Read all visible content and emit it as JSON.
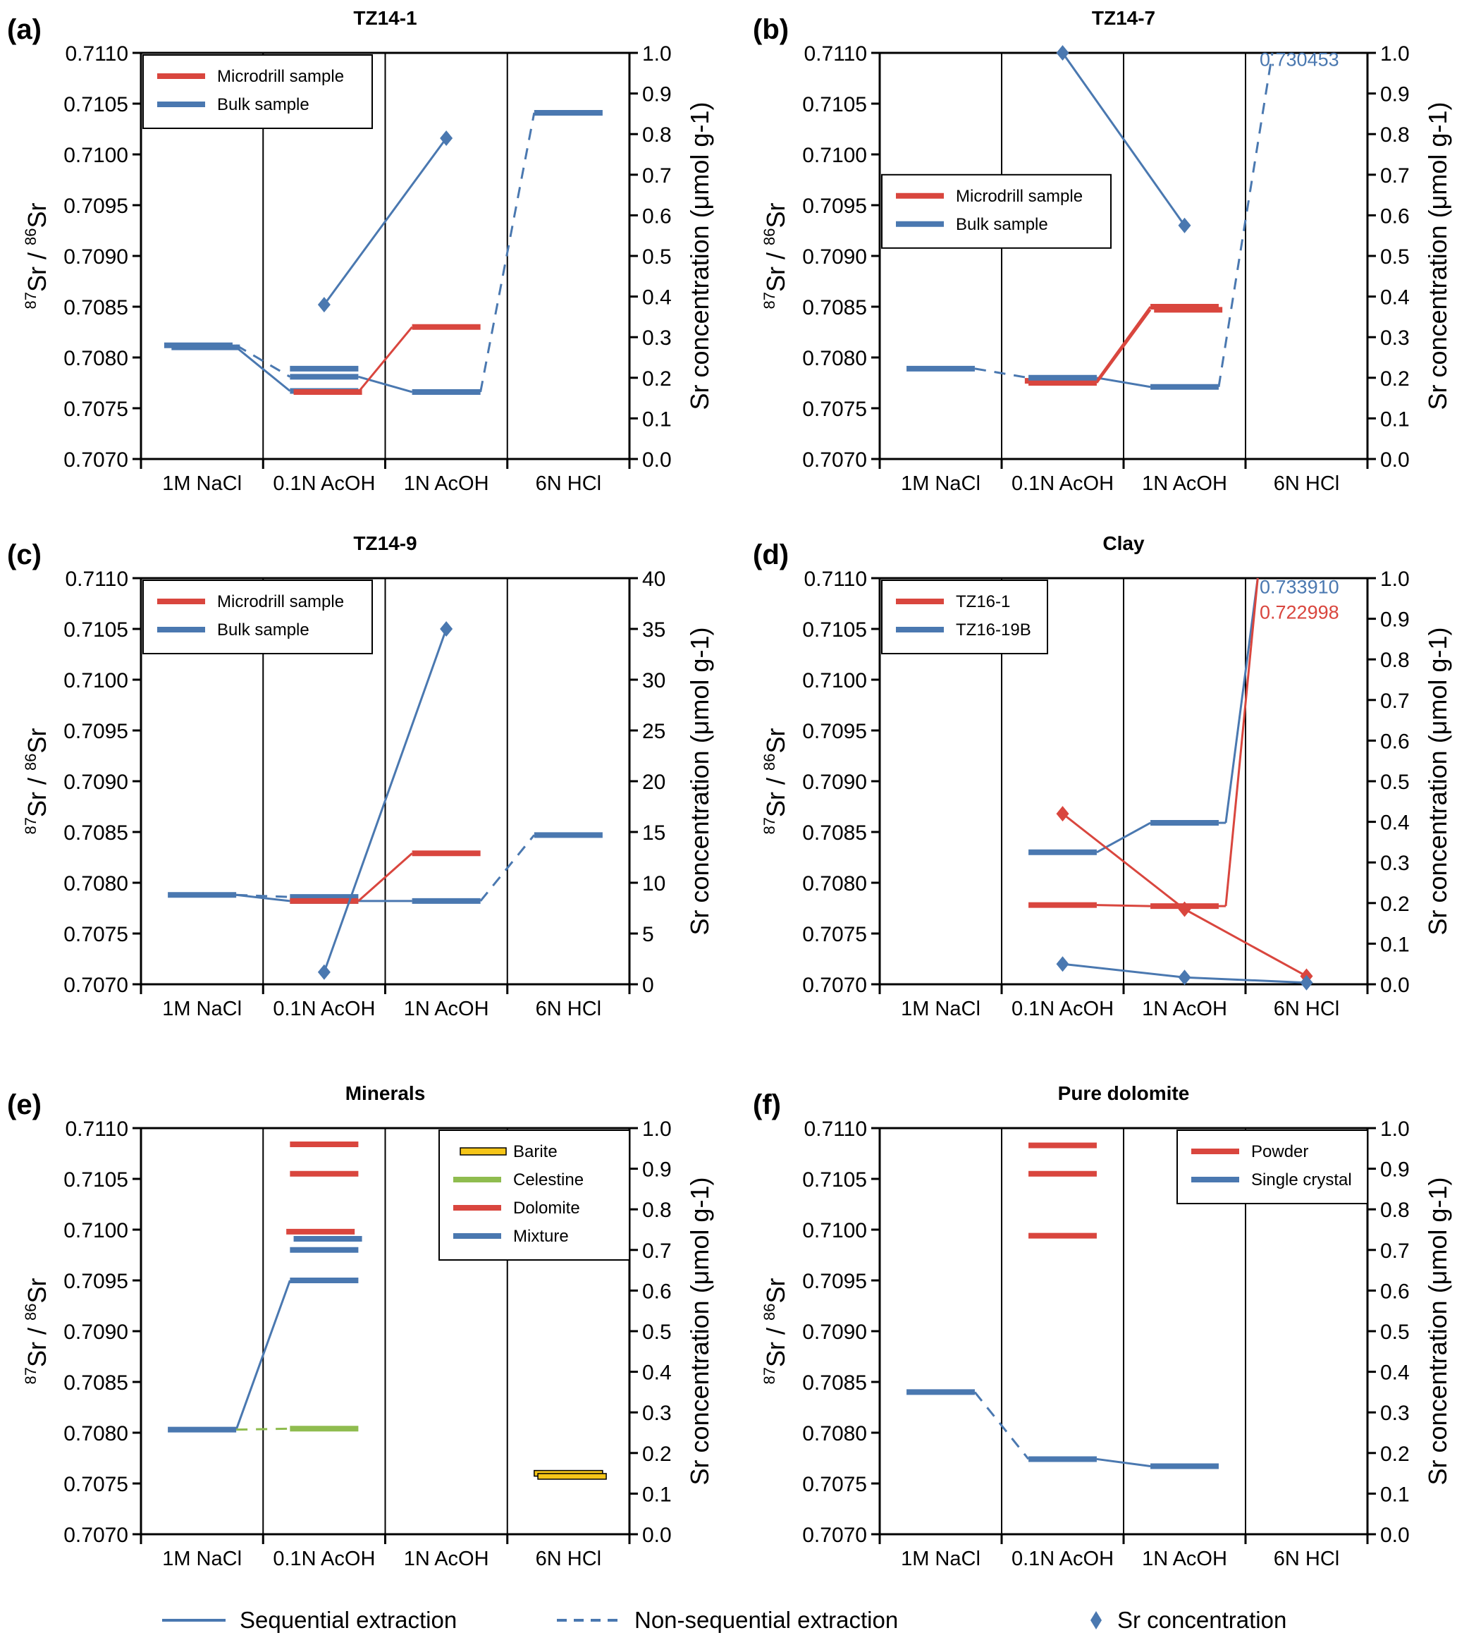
{
  "figure": {
    "bottom_legend": [
      {
        "label": "Sequential extraction",
        "style": "solid",
        "color": "#4a78b0"
      },
      {
        "label": "Non-sequential extraction",
        "style": "dashed",
        "color": "#4a78b0"
      },
      {
        "label": "Sr concentration",
        "style": "diamond",
        "color": "#4a78b0"
      }
    ],
    "colors": {
      "red": "#d9463e",
      "blue": "#4a78b0",
      "green": "#8fbc4f",
      "yellow": "#f5c518"
    }
  },
  "chart_data": [
    {
      "id": "a",
      "letter": "(a)",
      "title": "TZ14-1",
      "type": "line",
      "categories": [
        "1M NaCl",
        "0.1N AcOH",
        "1N AcOH",
        "6N HCl"
      ],
      "ylabel": "87Sr/86Sr",
      "ylabel_sup1": "87",
      "ylabel_sup2": "86",
      "y2label": "Sr concentration (μmol g-1)",
      "ylim": [
        0.707,
        0.711
      ],
      "yticks": [
        "0.7070",
        "0.7075",
        "0.7080",
        "0.7085",
        "0.7090",
        "0.7095",
        "0.7100",
        "0.7105",
        "0.7110"
      ],
      "y2lim": [
        0,
        1.0
      ],
      "y2ticks": [
        "0.0",
        "0.1",
        "0.2",
        "0.3",
        "0.4",
        "0.5",
        "0.6",
        "0.7",
        "0.8",
        "0.9",
        "1.0"
      ],
      "legend": {
        "position": "top-left",
        "entries": [
          {
            "label": "Microdrill sample",
            "color": "red"
          },
          {
            "label": "Bulk sample",
            "color": "blue"
          }
        ]
      },
      "ratio_segments": [
        {
          "color": "blue",
          "cat": 0,
          "value": 0.70812,
          "offset": -0.03
        },
        {
          "color": "blue",
          "cat": 0,
          "value": 0.7081,
          "offset": 0.03
        },
        {
          "color": "blue",
          "cat": 1,
          "value": 0.70789
        },
        {
          "color": "blue",
          "cat": 1,
          "value": 0.70781
        },
        {
          "color": "blue",
          "cat": 1,
          "value": 0.70767
        },
        {
          "color": "red",
          "cat": 1,
          "value": 0.70766,
          "offset": 0.03
        },
        {
          "color": "blue",
          "cat": 2,
          "value": 0.70766
        },
        {
          "color": "red",
          "cat": 2,
          "value": 0.7083
        },
        {
          "color": "blue",
          "cat": 3,
          "value": 0.71041
        }
      ],
      "connectors": [
        {
          "color": "blue",
          "style": "solid",
          "from": [
            0,
            0.7081
          ],
          "to": [
            1,
            0.70767
          ]
        },
        {
          "color": "blue",
          "style": "solid",
          "from": [
            1,
            0.70781
          ],
          "to": [
            2,
            0.70766
          ]
        },
        {
          "color": "blue",
          "style": "dashed",
          "from": [
            0,
            0.70812
          ],
          "to": [
            1,
            0.70781
          ]
        },
        {
          "color": "blue",
          "style": "dashed",
          "from": [
            2,
            0.70766
          ],
          "to": [
            3,
            0.71041
          ]
        },
        {
          "color": "red",
          "style": "solid",
          "from": [
            1,
            0.70766
          ],
          "to": [
            2,
            0.7083
          ]
        }
      ],
      "concentration": [
        {
          "color": "blue",
          "points": [
            [
              1,
              0.38
            ],
            [
              2,
              0.79
            ]
          ]
        }
      ],
      "annotations": []
    },
    {
      "id": "b",
      "letter": "(b)",
      "title": "TZ14-7",
      "type": "line",
      "categories": [
        "1M NaCl",
        "0.1N AcOH",
        "1N AcOH",
        "6N HCl"
      ],
      "ylabel": "87Sr/86Sr",
      "ylabel_sup1": "87",
      "ylabel_sup2": "86",
      "y2label": "Sr concentration (μmol g-1)",
      "ylim": [
        0.707,
        0.711
      ],
      "yticks": [
        "0.7070",
        "0.7075",
        "0.7080",
        "0.7085",
        "0.7090",
        "0.7095",
        "0.7100",
        "0.7105",
        "0.7110"
      ],
      "y2lim": [
        0,
        1.0
      ],
      "y2ticks": [
        "0.0",
        "0.1",
        "0.2",
        "0.3",
        "0.4",
        "0.5",
        "0.6",
        "0.7",
        "0.8",
        "0.9",
        "1.0"
      ],
      "legend": {
        "position": "center-left",
        "entries": [
          {
            "label": "Microdrill sample",
            "color": "red"
          },
          {
            "label": "Bulk sample",
            "color": "blue"
          }
        ]
      },
      "ratio_segments": [
        {
          "color": "blue",
          "cat": 0,
          "value": 0.70789
        },
        {
          "color": "red",
          "cat": 1,
          "value": 0.70777,
          "offset": -0.03
        },
        {
          "color": "red",
          "cat": 1,
          "value": 0.70775
        },
        {
          "color": "blue",
          "cat": 1,
          "value": 0.7078
        },
        {
          "color": "red",
          "cat": 2,
          "value": 0.7085
        },
        {
          "color": "red",
          "cat": 2,
          "value": 0.70847,
          "offset": 0.03
        },
        {
          "color": "blue",
          "cat": 2,
          "value": 0.70771
        }
      ],
      "connectors": [
        {
          "color": "blue",
          "style": "dashed",
          "from": [
            0,
            0.70789
          ],
          "to": [
            1,
            0.7078
          ]
        },
        {
          "color": "blue",
          "style": "solid",
          "from": [
            1,
            0.7078
          ],
          "to": [
            2,
            0.70771
          ]
        },
        {
          "color": "blue",
          "style": "dashed",
          "from": [
            2,
            0.70771
          ],
          "to": [
            3,
            0.711
          ]
        },
        {
          "color": "red",
          "style": "solid",
          "from": [
            1,
            0.70777
          ],
          "to": [
            2,
            0.7085
          ]
        },
        {
          "color": "red",
          "style": "solid",
          "from": [
            1,
            0.70775
          ],
          "to": [
            2,
            0.70847
          ]
        }
      ],
      "concentration": [
        {
          "color": "blue",
          "points": [
            [
              1,
              1.0
            ],
            [
              2,
              0.575
            ]
          ]
        }
      ],
      "annotations": [
        {
          "text": "0.730453",
          "color": "blue",
          "cat": 3,
          "value": 0.71087
        }
      ]
    },
    {
      "id": "c",
      "letter": "(c)",
      "title": "TZ14-9",
      "type": "line",
      "categories": [
        "1M NaCl",
        "0.1N AcOH",
        "1N AcOH",
        "6N HCl"
      ],
      "ylabel": "87Sr/86Sr",
      "ylabel_sup1": "87",
      "ylabel_sup2": "86",
      "y2label": "Sr concentration (μmol g-1)",
      "ylim": [
        0.707,
        0.711
      ],
      "yticks": [
        "0.7070",
        "0.7075",
        "0.7080",
        "0.7085",
        "0.7090",
        "0.7095",
        "0.7100",
        "0.7105",
        "0.7110"
      ],
      "y2lim": [
        0,
        40
      ],
      "y2ticks": [
        "0",
        "5",
        "10",
        "15",
        "20",
        "25",
        "30",
        "35",
        "40"
      ],
      "legend": {
        "position": "top-left",
        "entries": [
          {
            "label": "Microdrill sample",
            "color": "red"
          },
          {
            "label": "Bulk sample",
            "color": "blue"
          }
        ]
      },
      "ratio_segments": [
        {
          "color": "blue",
          "cat": 0,
          "value": 0.70788
        },
        {
          "color": "blue",
          "cat": 1,
          "value": 0.70786
        },
        {
          "color": "blue",
          "cat": 1,
          "value": 0.70782
        },
        {
          "color": "red",
          "cat": 1,
          "value": 0.70782
        },
        {
          "color": "red",
          "cat": 2,
          "value": 0.70829
        },
        {
          "color": "blue",
          "cat": 2,
          "value": 0.70782
        },
        {
          "color": "blue",
          "cat": 3,
          "value": 0.70847
        }
      ],
      "connectors": [
        {
          "color": "blue",
          "style": "solid",
          "from": [
            0,
            0.70788
          ],
          "to": [
            1,
            0.70782
          ]
        },
        {
          "color": "blue",
          "style": "dashed",
          "from": [
            0,
            0.70788
          ],
          "to": [
            1,
            0.70786
          ]
        },
        {
          "color": "blue",
          "style": "solid",
          "from": [
            1,
            0.70782
          ],
          "to": [
            2,
            0.70782
          ]
        },
        {
          "color": "blue",
          "style": "dashed",
          "from": [
            2,
            0.70782
          ],
          "to": [
            3,
            0.70847
          ]
        },
        {
          "color": "red",
          "style": "solid",
          "from": [
            1,
            0.70782
          ],
          "to": [
            2,
            0.70829
          ]
        }
      ],
      "concentration": [
        {
          "color": "blue",
          "points": [
            [
              1,
              1.2
            ],
            [
              2,
              35.0
            ]
          ]
        }
      ],
      "annotations": []
    },
    {
      "id": "d",
      "letter": "(d)",
      "title": "Clay",
      "type": "line",
      "categories": [
        "1M NaCl",
        "0.1N AcOH",
        "1N AcOH",
        "6N HCl"
      ],
      "ylabel": "87Sr/86Sr",
      "ylabel_sup1": "87",
      "ylabel_sup2": "86",
      "y2label": "Sr concentration (μmol g-1)",
      "ylim": [
        0.707,
        0.711
      ],
      "yticks": [
        "0.7070",
        "0.7075",
        "0.7080",
        "0.7085",
        "0.7090",
        "0.7095",
        "0.7100",
        "0.7105",
        "0.7110"
      ],
      "y2lim": [
        0,
        1.0
      ],
      "y2ticks": [
        "0.0",
        "0.1",
        "0.2",
        "0.3",
        "0.4",
        "0.5",
        "0.6",
        "0.7",
        "0.8",
        "0.9",
        "1.0"
      ],
      "legend": {
        "position": "top-left",
        "entries": [
          {
            "label": "TZ16-1",
            "color": "red"
          },
          {
            "label": "TZ16-19B",
            "color": "blue"
          }
        ]
      },
      "ratio_segments": [
        {
          "color": "blue",
          "cat": 1,
          "value": 0.7083
        },
        {
          "color": "red",
          "cat": 1,
          "value": 0.70778
        },
        {
          "color": "blue",
          "cat": 2,
          "value": 0.70859
        },
        {
          "color": "red",
          "cat": 2,
          "value": 0.70777
        }
      ],
      "connectors": [
        {
          "color": "blue",
          "style": "solid",
          "from": [
            1,
            0.7083
          ],
          "to": [
            2,
            0.70859
          ]
        },
        {
          "color": "blue",
          "style": "solid",
          "from": [
            2,
            0.70859
          ],
          "to": [
            3,
            0.711
          ],
          "steep": true
        },
        {
          "color": "red",
          "style": "solid",
          "from": [
            1,
            0.70778
          ],
          "to": [
            2,
            0.70777
          ]
        },
        {
          "color": "red",
          "style": "solid",
          "from": [
            2,
            0.70777
          ],
          "to": [
            3,
            0.711
          ],
          "steep": true,
          "shift": 0.1
        }
      ],
      "concentration": [
        {
          "color": "red",
          "points": [
            [
              1,
              0.42
            ],
            [
              2,
              0.185
            ],
            [
              3,
              0.02
            ]
          ]
        },
        {
          "color": "blue",
          "points": [
            [
              1,
              0.05
            ],
            [
              2,
              0.017
            ],
            [
              3,
              0.004
            ]
          ]
        }
      ],
      "annotations": [
        {
          "text": "0.733910",
          "color": "blue",
          "cat": 3,
          "value": 0.71085
        },
        {
          "text": "0.722998",
          "color": "red",
          "cat": 3,
          "value": 0.7106
        }
      ]
    },
    {
      "id": "e",
      "letter": "(e)",
      "title": "Minerals",
      "type": "line",
      "categories": [
        "1M NaCl",
        "0.1N AcOH",
        "1N AcOH",
        "6N HCl"
      ],
      "ylabel": "87Sr/86Sr",
      "ylabel_sup1": "87",
      "ylabel_sup2": "86",
      "y2label": "Sr concentration (μmol g-1)",
      "ylim": [
        0.707,
        0.711
      ],
      "yticks": [
        "0.7070",
        "0.7075",
        "0.7080",
        "0.7085",
        "0.7090",
        "0.7095",
        "0.7100",
        "0.7105",
        "0.7110"
      ],
      "y2lim": [
        0,
        1.0
      ],
      "y2ticks": [
        "0.0",
        "0.1",
        "0.2",
        "0.3",
        "0.4",
        "0.5",
        "0.6",
        "0.7",
        "0.8",
        "0.9",
        "1.0"
      ],
      "legend": {
        "position": "top-right",
        "entries": [
          {
            "label": "Barite",
            "color": "yellow",
            "outlined": true
          },
          {
            "label": "Celestine",
            "color": "green"
          },
          {
            "label": "Dolomite",
            "color": "red"
          },
          {
            "label": "Mixture",
            "color": "blue"
          }
        ]
      },
      "ratio_segments": [
        {
          "color": "blue",
          "cat": 0,
          "value": 0.70803
        },
        {
          "color": "green",
          "cat": 1,
          "value": 0.70804
        },
        {
          "color": "red",
          "cat": 1,
          "value": 0.71084
        },
        {
          "color": "red",
          "cat": 1,
          "value": 0.71055
        },
        {
          "color": "red",
          "cat": 1,
          "value": 0.70998,
          "offset": -0.03
        },
        {
          "color": "blue",
          "cat": 1,
          "value": 0.70991,
          "offset": 0.03
        },
        {
          "color": "blue",
          "cat": 1,
          "value": 0.7098
        },
        {
          "color": "blue",
          "cat": 1,
          "value": 0.7095
        },
        {
          "color": "yellow",
          "cat": 3,
          "value": 0.7076,
          "outlined": true
        },
        {
          "color": "yellow",
          "cat": 3,
          "value": 0.70757,
          "outlined": true,
          "offset": 0.03
        }
      ],
      "connectors": [
        {
          "color": "blue",
          "style": "solid",
          "from": [
            0,
            0.70803
          ],
          "to": [
            1,
            0.7095
          ]
        },
        {
          "color": "green",
          "style": "dashed",
          "from": [
            0,
            0.70803
          ],
          "to": [
            1,
            0.70804
          ]
        }
      ],
      "concentration": [],
      "annotations": []
    },
    {
      "id": "f",
      "letter": "(f)",
      "title": "Pure dolomite",
      "type": "line",
      "categories": [
        "1M NaCl",
        "0.1N AcOH",
        "1N AcOH",
        "6N HCl"
      ],
      "ylabel": "87Sr/86Sr",
      "ylabel_sup1": "87",
      "ylabel_sup2": "86",
      "y2label": "Sr concentration (μmol g-1)",
      "ylim": [
        0.707,
        0.711
      ],
      "yticks": [
        "0.7070",
        "0.7075",
        "0.7080",
        "0.7085",
        "0.7090",
        "0.7095",
        "0.7100",
        "0.7105",
        "0.7110"
      ],
      "y2lim": [
        0,
        1.0
      ],
      "y2ticks": [
        "0.0",
        "0.1",
        "0.2",
        "0.3",
        "0.4",
        "0.5",
        "0.6",
        "0.7",
        "0.8",
        "0.9",
        "1.0"
      ],
      "legend": {
        "position": "top-right",
        "entries": [
          {
            "label": "Powder",
            "color": "red"
          },
          {
            "label": "Single crystal",
            "color": "blue"
          }
        ]
      },
      "ratio_segments": [
        {
          "color": "blue",
          "cat": 0,
          "value": 0.7084
        },
        {
          "color": "red",
          "cat": 1,
          "value": 0.71083
        },
        {
          "color": "red",
          "cat": 1,
          "value": 0.71055
        },
        {
          "color": "red",
          "cat": 1,
          "value": 0.70994
        },
        {
          "color": "blue",
          "cat": 1,
          "value": 0.70774
        },
        {
          "color": "blue",
          "cat": 2,
          "value": 0.70767
        }
      ],
      "connectors": [
        {
          "color": "blue",
          "style": "dashed",
          "from": [
            0,
            0.7084
          ],
          "to": [
            1,
            0.70774
          ]
        },
        {
          "color": "blue",
          "style": "solid",
          "from": [
            1,
            0.70774
          ],
          "to": [
            2,
            0.70767
          ]
        }
      ],
      "concentration": [],
      "annotations": []
    }
  ]
}
